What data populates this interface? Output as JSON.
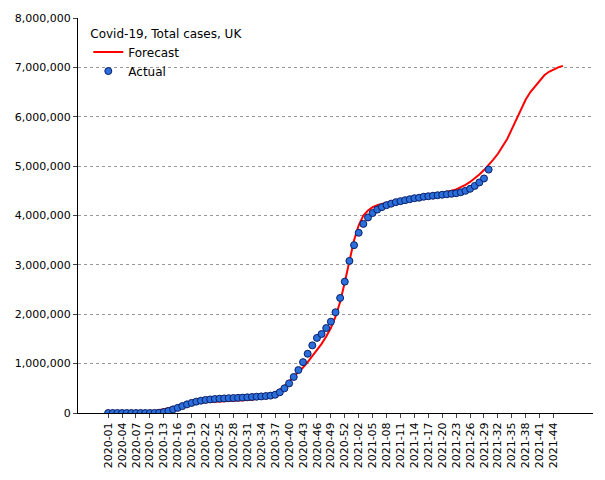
{
  "chart_data": {
    "type": "line",
    "title": "Covid-19, Total cases, UK",
    "categories": [
      "2020-01",
      null,
      null,
      "2020-04",
      null,
      null,
      "2020-07",
      null,
      null,
      "2020-10",
      null,
      null,
      "2020-13",
      null,
      null,
      "2020-16",
      null,
      null,
      "2020-19",
      null,
      null,
      "2020-22",
      null,
      null,
      "2020-25",
      null,
      null,
      "2020-28",
      null,
      null,
      "2020-31",
      null,
      null,
      "2020-34",
      null,
      null,
      "2020-37",
      null,
      null,
      "2020-40",
      null,
      null,
      "2020-43",
      null,
      null,
      "2020-46",
      null,
      null,
      "2020-49",
      null,
      null,
      "2020-52",
      null,
      null,
      "2021-02",
      null,
      null,
      "2021-05",
      null,
      null,
      "2021-08",
      null,
      null,
      "2021-11",
      null,
      null,
      "2021-14",
      null,
      null,
      "2021-17",
      null,
      null,
      "2021-20",
      null,
      null,
      "2021-23",
      null,
      null,
      "2021-26",
      null,
      null,
      "2021-29",
      null,
      null,
      "2021-32",
      null,
      null,
      "2021-35",
      null,
      null,
      "2021-38",
      null,
      null,
      "2021-41",
      null,
      null,
      "2021-44",
      null,
      null
    ],
    "series": [
      {
        "name": "Forecast",
        "type": "line",
        "color": "#ff0000",
        "line_style": "solid",
        "values": [
          0,
          0,
          0,
          0,
          0,
          0,
          0,
          5000,
          10000,
          20000,
          35000,
          55000,
          75000,
          95000,
          115000,
          135000,
          155000,
          175000,
          190000,
          205000,
          215000,
          220000,
          225000,
          228000,
          230000,
          232000,
          235000,
          240000,
          245000,
          252000,
          260000,
          270000,
          285000,
          300000,
          325000,
          360000,
          410000,
          470000,
          550000,
          640000,
          730000,
          820000,
          920000,
          1030000,
          1150000,
          1270000,
          1400000,
          1550000,
          1720000,
          1950000,
          2250000,
          2650000,
          3100000,
          3500000,
          3800000,
          4000000,
          4100000,
          4170000,
          4210000,
          4240000,
          4260000,
          4280000,
          4300000,
          4320000,
          4330000,
          4340000,
          4360000,
          4370000,
          4390000,
          4400000,
          4420000,
          4430000,
          4450000,
          4470000,
          4500000,
          4530000,
          4570000,
          4620000,
          4680000,
          4750000,
          4830000,
          4920000,
          5020000,
          5130000,
          5250000,
          5400000,
          5550000,
          5750000,
          5950000,
          6150000,
          6350000,
          6500000,
          6620000,
          6740000,
          6840000,
          6910000,
          6960000,
          7000000,
          7030000
        ]
      },
      {
        "name": "Actual",
        "type": "scatter",
        "color": "#2a6fdb",
        "marker": "circle",
        "values": [
          0,
          0,
          0,
          0,
          0,
          0,
          0,
          0,
          0,
          300,
          1400,
          5000,
          19000,
          42000,
          74000,
          104000,
          140000,
          175000,
          205000,
          230000,
          250000,
          265000,
          275000,
          283000,
          290000,
          295000,
          300000,
          303000,
          307000,
          312000,
          318000,
          324000,
          330000,
          336000,
          343000,
          352000,
          370000,
          420000,
          500000,
          600000,
          730000,
          870000,
          1030000,
          1200000,
          1370000,
          1520000,
          1600000,
          1720000,
          1850000,
          2040000,
          2330000,
          2660000,
          3080000,
          3400000,
          3650000,
          3830000,
          3960000,
          4050000,
          4120000,
          4170000,
          4210000,
          4240000,
          4270000,
          4290000,
          4310000,
          4330000,
          4350000,
          4360000,
          4380000,
          4390000,
          4400000,
          4410000,
          4420000,
          4430000,
          4440000,
          4450000,
          4470000,
          4500000,
          4540000,
          4600000,
          4670000,
          4750000,
          4930000,
          null,
          null,
          null,
          null,
          null,
          null,
          null,
          null,
          null,
          null,
          null,
          null,
          null,
          null,
          null,
          null
        ]
      }
    ],
    "ylim": [
      0,
      8000000
    ],
    "yticks": [
      0,
      {
        "value": 1000000,
        "label": "1,000,000"
      },
      {
        "value": 2000000,
        "label": "2,000,000"
      },
      {
        "value": 3000000,
        "label": "3,000,000"
      },
      {
        "value": 4000000,
        "label": "4,000,000"
      },
      {
        "value": 5000000,
        "label": "5,000,000"
      },
      {
        "value": 6000000,
        "label": "6,000,000"
      },
      {
        "value": 7000000,
        "label": "7,000,000"
      },
      {
        "value": 8000000,
        "label": "8,000,000"
      }
    ],
    "grid": true,
    "legend": "top-left"
  }
}
